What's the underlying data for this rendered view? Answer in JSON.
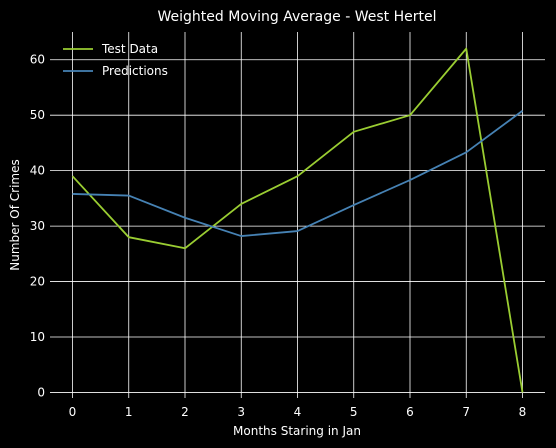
{
  "chart_data": {
    "type": "line",
    "title": "Weighted Moving Average - West Hertel",
    "xlabel": "Months Staring in Jan",
    "ylabel": "Number Of Crimes",
    "x": [
      0,
      1,
      2,
      3,
      4,
      5,
      6,
      7,
      8
    ],
    "xlim": [
      -0.4,
      8.4
    ],
    "ylim": [
      -1,
      65
    ],
    "xticks": [
      0,
      1,
      2,
      3,
      4,
      5,
      6,
      7,
      8
    ],
    "yticks": [
      0,
      10,
      20,
      30,
      40,
      50,
      60
    ],
    "grid": true,
    "legend_position": "top-left",
    "background": "#000000",
    "series": [
      {
        "name": "Test Data",
        "color": "#9acd32",
        "values": [
          39,
          28,
          26,
          34,
          39,
          47,
          50,
          62,
          0
        ]
      },
      {
        "name": "Predictions",
        "color": "#4682b4",
        "values": [
          35.8,
          35.5,
          31.5,
          28.2,
          29.1,
          33.8,
          38.3,
          43.3,
          50.8
        ]
      }
    ]
  }
}
